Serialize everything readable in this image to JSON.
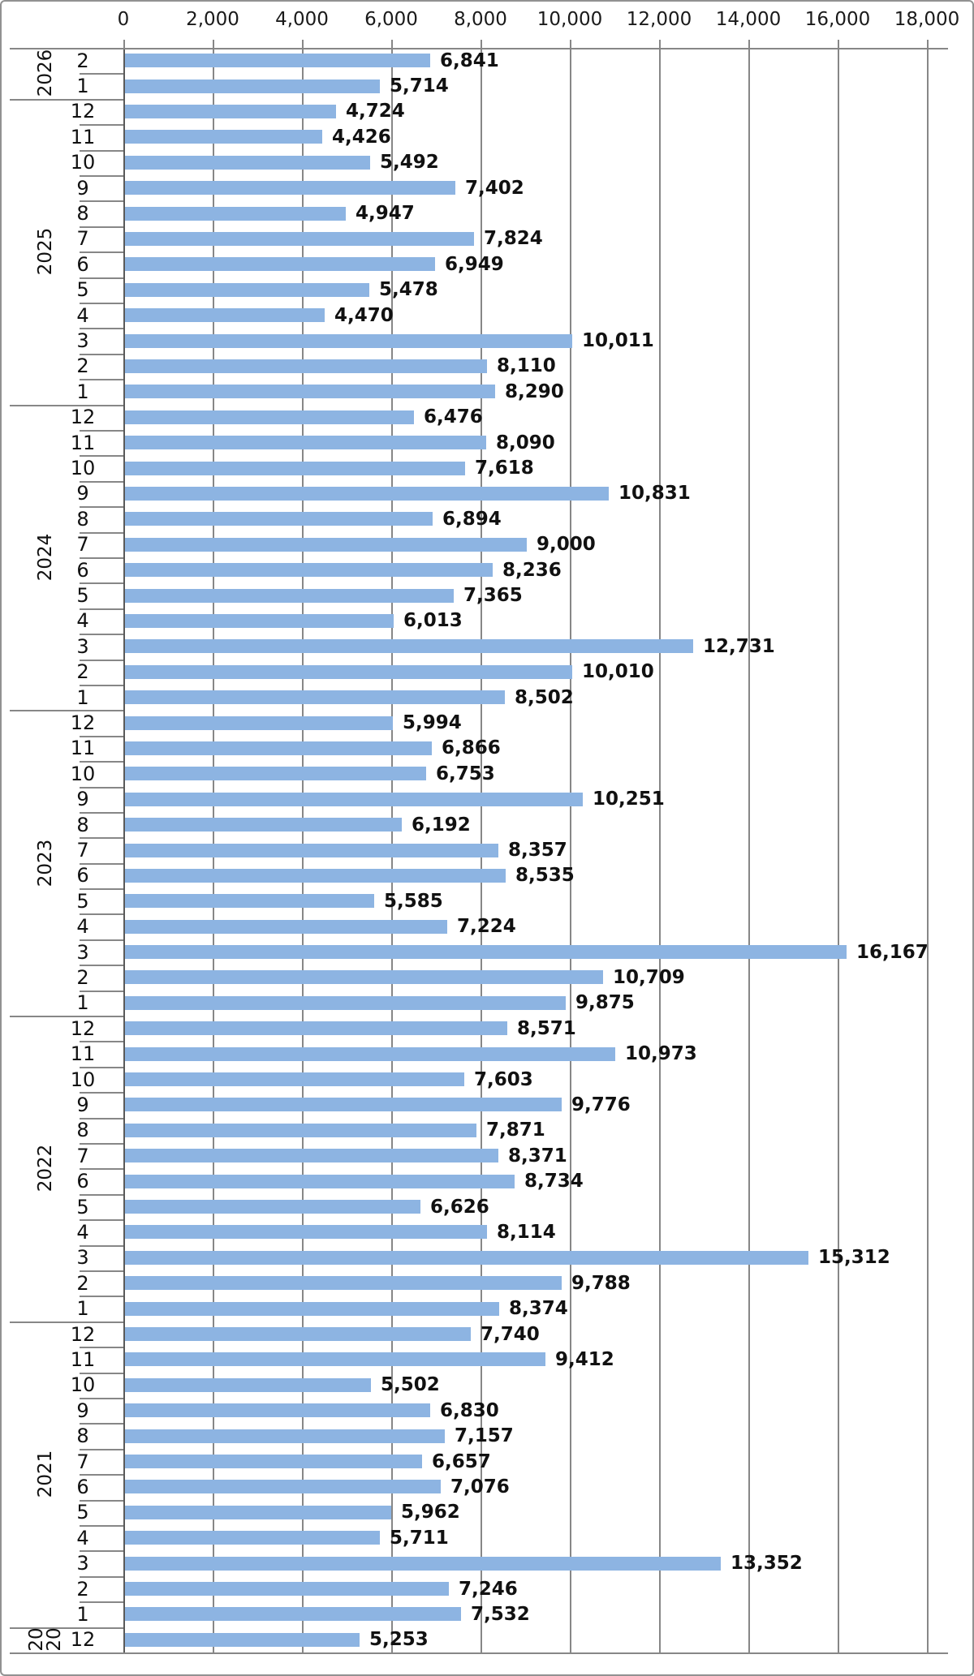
{
  "chart_data": {
    "type": "bar",
    "orientation": "horizontal",
    "title": "",
    "legend": false,
    "grid": true,
    "bar_color": "#8DB4E2",
    "gridline_color": "#878787",
    "axis_line_color": "#5a5a5a",
    "text_color": "#111111",
    "value_axis": {
      "position": "top",
      "min": 0,
      "max": 18000,
      "step": 2000,
      "tick_labels": [
        "0",
        "2,000",
        "4,000",
        "6,000",
        "8,000",
        "10,000",
        "12,000",
        "14,000",
        "16,000",
        "18,000"
      ]
    },
    "category_axis": {
      "levels": [
        "year",
        "month"
      ],
      "order": "newest-first"
    },
    "groups": [
      {
        "year": "2026",
        "months": [
          {
            "m": "2",
            "v": 6841
          },
          {
            "m": "1",
            "v": 5714
          }
        ]
      },
      {
        "year": "2025",
        "months": [
          {
            "m": "12",
            "v": 4724
          },
          {
            "m": "11",
            "v": 4426
          },
          {
            "m": "10",
            "v": 5492
          },
          {
            "m": "9",
            "v": 7402
          },
          {
            "m": "8",
            "v": 4947
          },
          {
            "m": "7",
            "v": 7824
          },
          {
            "m": "6",
            "v": 6949
          },
          {
            "m": "5",
            "v": 5478
          },
          {
            "m": "4",
            "v": 4470
          },
          {
            "m": "3",
            "v": 10011
          },
          {
            "m": "2",
            "v": 8110
          },
          {
            "m": "1",
            "v": 8290
          }
        ]
      },
      {
        "year": "2024",
        "months": [
          {
            "m": "12",
            "v": 6476
          },
          {
            "m": "11",
            "v": 8090
          },
          {
            "m": "10",
            "v": 7618
          },
          {
            "m": "9",
            "v": 10831
          },
          {
            "m": "8",
            "v": 6894
          },
          {
            "m": "7",
            "v": 9000
          },
          {
            "m": "6",
            "v": 8236
          },
          {
            "m": "5",
            "v": 7365
          },
          {
            "m": "4",
            "v": 6013
          },
          {
            "m": "3",
            "v": 12731
          },
          {
            "m": "2",
            "v": 10010
          },
          {
            "m": "1",
            "v": 8502
          }
        ]
      },
      {
        "year": "2023",
        "months": [
          {
            "m": "12",
            "v": 5994
          },
          {
            "m": "11",
            "v": 6866
          },
          {
            "m": "10",
            "v": 6753
          },
          {
            "m": "9",
            "v": 10251
          },
          {
            "m": "8",
            "v": 6192
          },
          {
            "m": "7",
            "v": 8357
          },
          {
            "m": "6",
            "v": 8535
          },
          {
            "m": "5",
            "v": 5585
          },
          {
            "m": "4",
            "v": 7224
          },
          {
            "m": "3",
            "v": 16167
          },
          {
            "m": "2",
            "v": 10709
          },
          {
            "m": "1",
            "v": 9875
          }
        ]
      },
      {
        "year": "2022",
        "months": [
          {
            "m": "12",
            "v": 8571
          },
          {
            "m": "11",
            "v": 10973
          },
          {
            "m": "10",
            "v": 7603
          },
          {
            "m": "9",
            "v": 9776
          },
          {
            "m": "8",
            "v": 7871
          },
          {
            "m": "7",
            "v": 8371
          },
          {
            "m": "6",
            "v": 8734
          },
          {
            "m": "5",
            "v": 6626
          },
          {
            "m": "4",
            "v": 8114
          },
          {
            "m": "3",
            "v": 15312
          },
          {
            "m": "2",
            "v": 9788
          },
          {
            "m": "1",
            "v": 8374
          }
        ]
      },
      {
        "year": "2021",
        "months": [
          {
            "m": "12",
            "v": 7740
          },
          {
            "m": "11",
            "v": 9412
          },
          {
            "m": "10",
            "v": 5502
          },
          {
            "m": "9",
            "v": 6830
          },
          {
            "m": "8",
            "v": 7157
          },
          {
            "m": "7",
            "v": 6657
          },
          {
            "m": "6",
            "v": 7076
          },
          {
            "m": "5",
            "v": 5962
          },
          {
            "m": "4",
            "v": 5711
          },
          {
            "m": "3",
            "v": 13352
          },
          {
            "m": "2",
            "v": 7246
          },
          {
            "m": "1",
            "v": 7532
          }
        ]
      },
      {
        "year": "2020",
        "months": [
          {
            "m": "12",
            "v": 5253
          }
        ]
      }
    ]
  }
}
